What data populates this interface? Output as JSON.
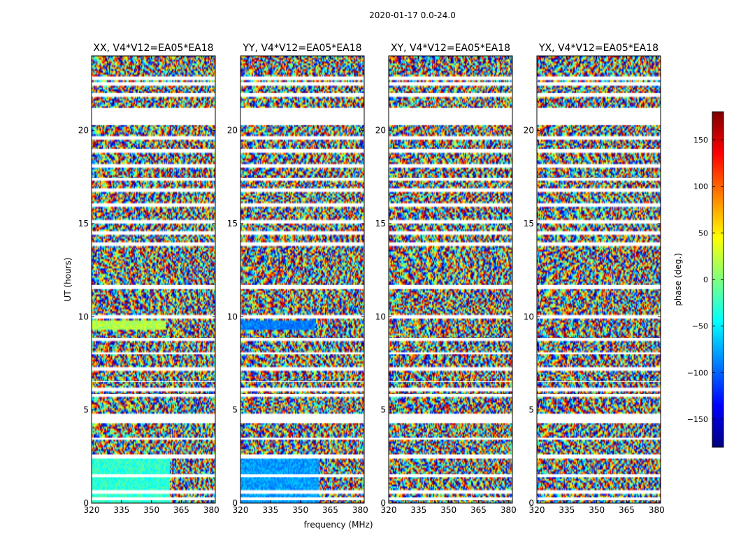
{
  "chart_data": {
    "type": "heatmap",
    "title": "2020-01-17 0.0-24.0",
    "xlabel": "frequency (MHz)",
    "ylabel": "UT (hours)",
    "xlim": [
      320,
      382
    ],
    "ylim": [
      0,
      24
    ],
    "xticks": [
      "320",
      "335",
      "350",
      "365",
      "380"
    ],
    "yticks": [
      "0",
      "5",
      "10",
      "15",
      "20"
    ],
    "colorbar": {
      "label": "phase (deg.)",
      "range": [
        -180,
        180
      ],
      "ticks": [
        "−150",
        "−100",
        "−50",
        "0",
        "50",
        "100",
        "150"
      ],
      "colormap": "jet",
      "colors": [
        "#00007f",
        "#0000ff",
        "#007fff",
        "#00ffff",
        "#7fff7f",
        "#ffff00",
        "#ff7f00",
        "#ff0000",
        "#7f0000"
      ]
    },
    "flagged_ut_bands": [
      [
        0.15,
        0.3
      ],
      [
        0.55,
        0.65
      ],
      [
        1.4,
        1.55
      ],
      [
        2.4,
        2.6
      ],
      [
        3.45,
        3.5
      ],
      [
        4.3,
        4.45
      ],
      [
        4.55,
        4.75
      ],
      [
        5.75,
        5.85
      ],
      [
        6.05,
        6.15
      ],
      [
        6.5,
        6.55
      ],
      [
        7.15,
        7.25
      ],
      [
        8.0,
        8.05
      ],
      [
        8.75,
        8.85
      ],
      [
        9.95,
        10.05
      ],
      [
        11.5,
        11.7
      ],
      [
        13.85,
        13.95
      ],
      [
        14.45,
        14.55
      ],
      [
        15.05,
        15.15
      ],
      [
        15.95,
        16.05
      ],
      [
        16.75,
        16.85
      ],
      [
        17.35,
        17.45
      ],
      [
        18.05,
        18.15
      ],
      [
        18.85,
        19.0
      ],
      [
        19.55,
        19.65
      ],
      [
        20.3,
        21.2
      ],
      [
        21.85,
        22.0
      ],
      [
        22.45,
        22.55
      ],
      [
        22.75,
        22.85
      ]
    ],
    "panels": [
      {
        "name": "XX",
        "title": "XX, V4*V12=EA05*EA18"
      },
      {
        "name": "YY",
        "title": "YY, V4*V12=EA05*EA18"
      },
      {
        "name": "XY",
        "title": "XY, V4*V12=EA05*EA18"
      },
      {
        "name": "YX",
        "title": "YX, V4*V12=EA05*EA18"
      }
    ]
  }
}
